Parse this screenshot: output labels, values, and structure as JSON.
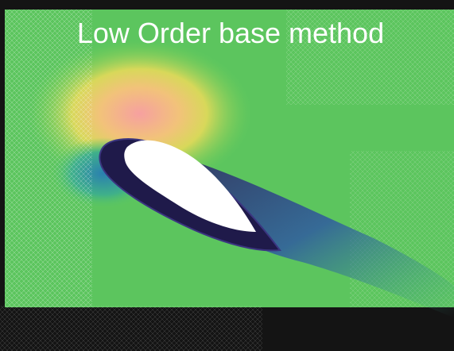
{
  "title": "Low Order base method"
}
